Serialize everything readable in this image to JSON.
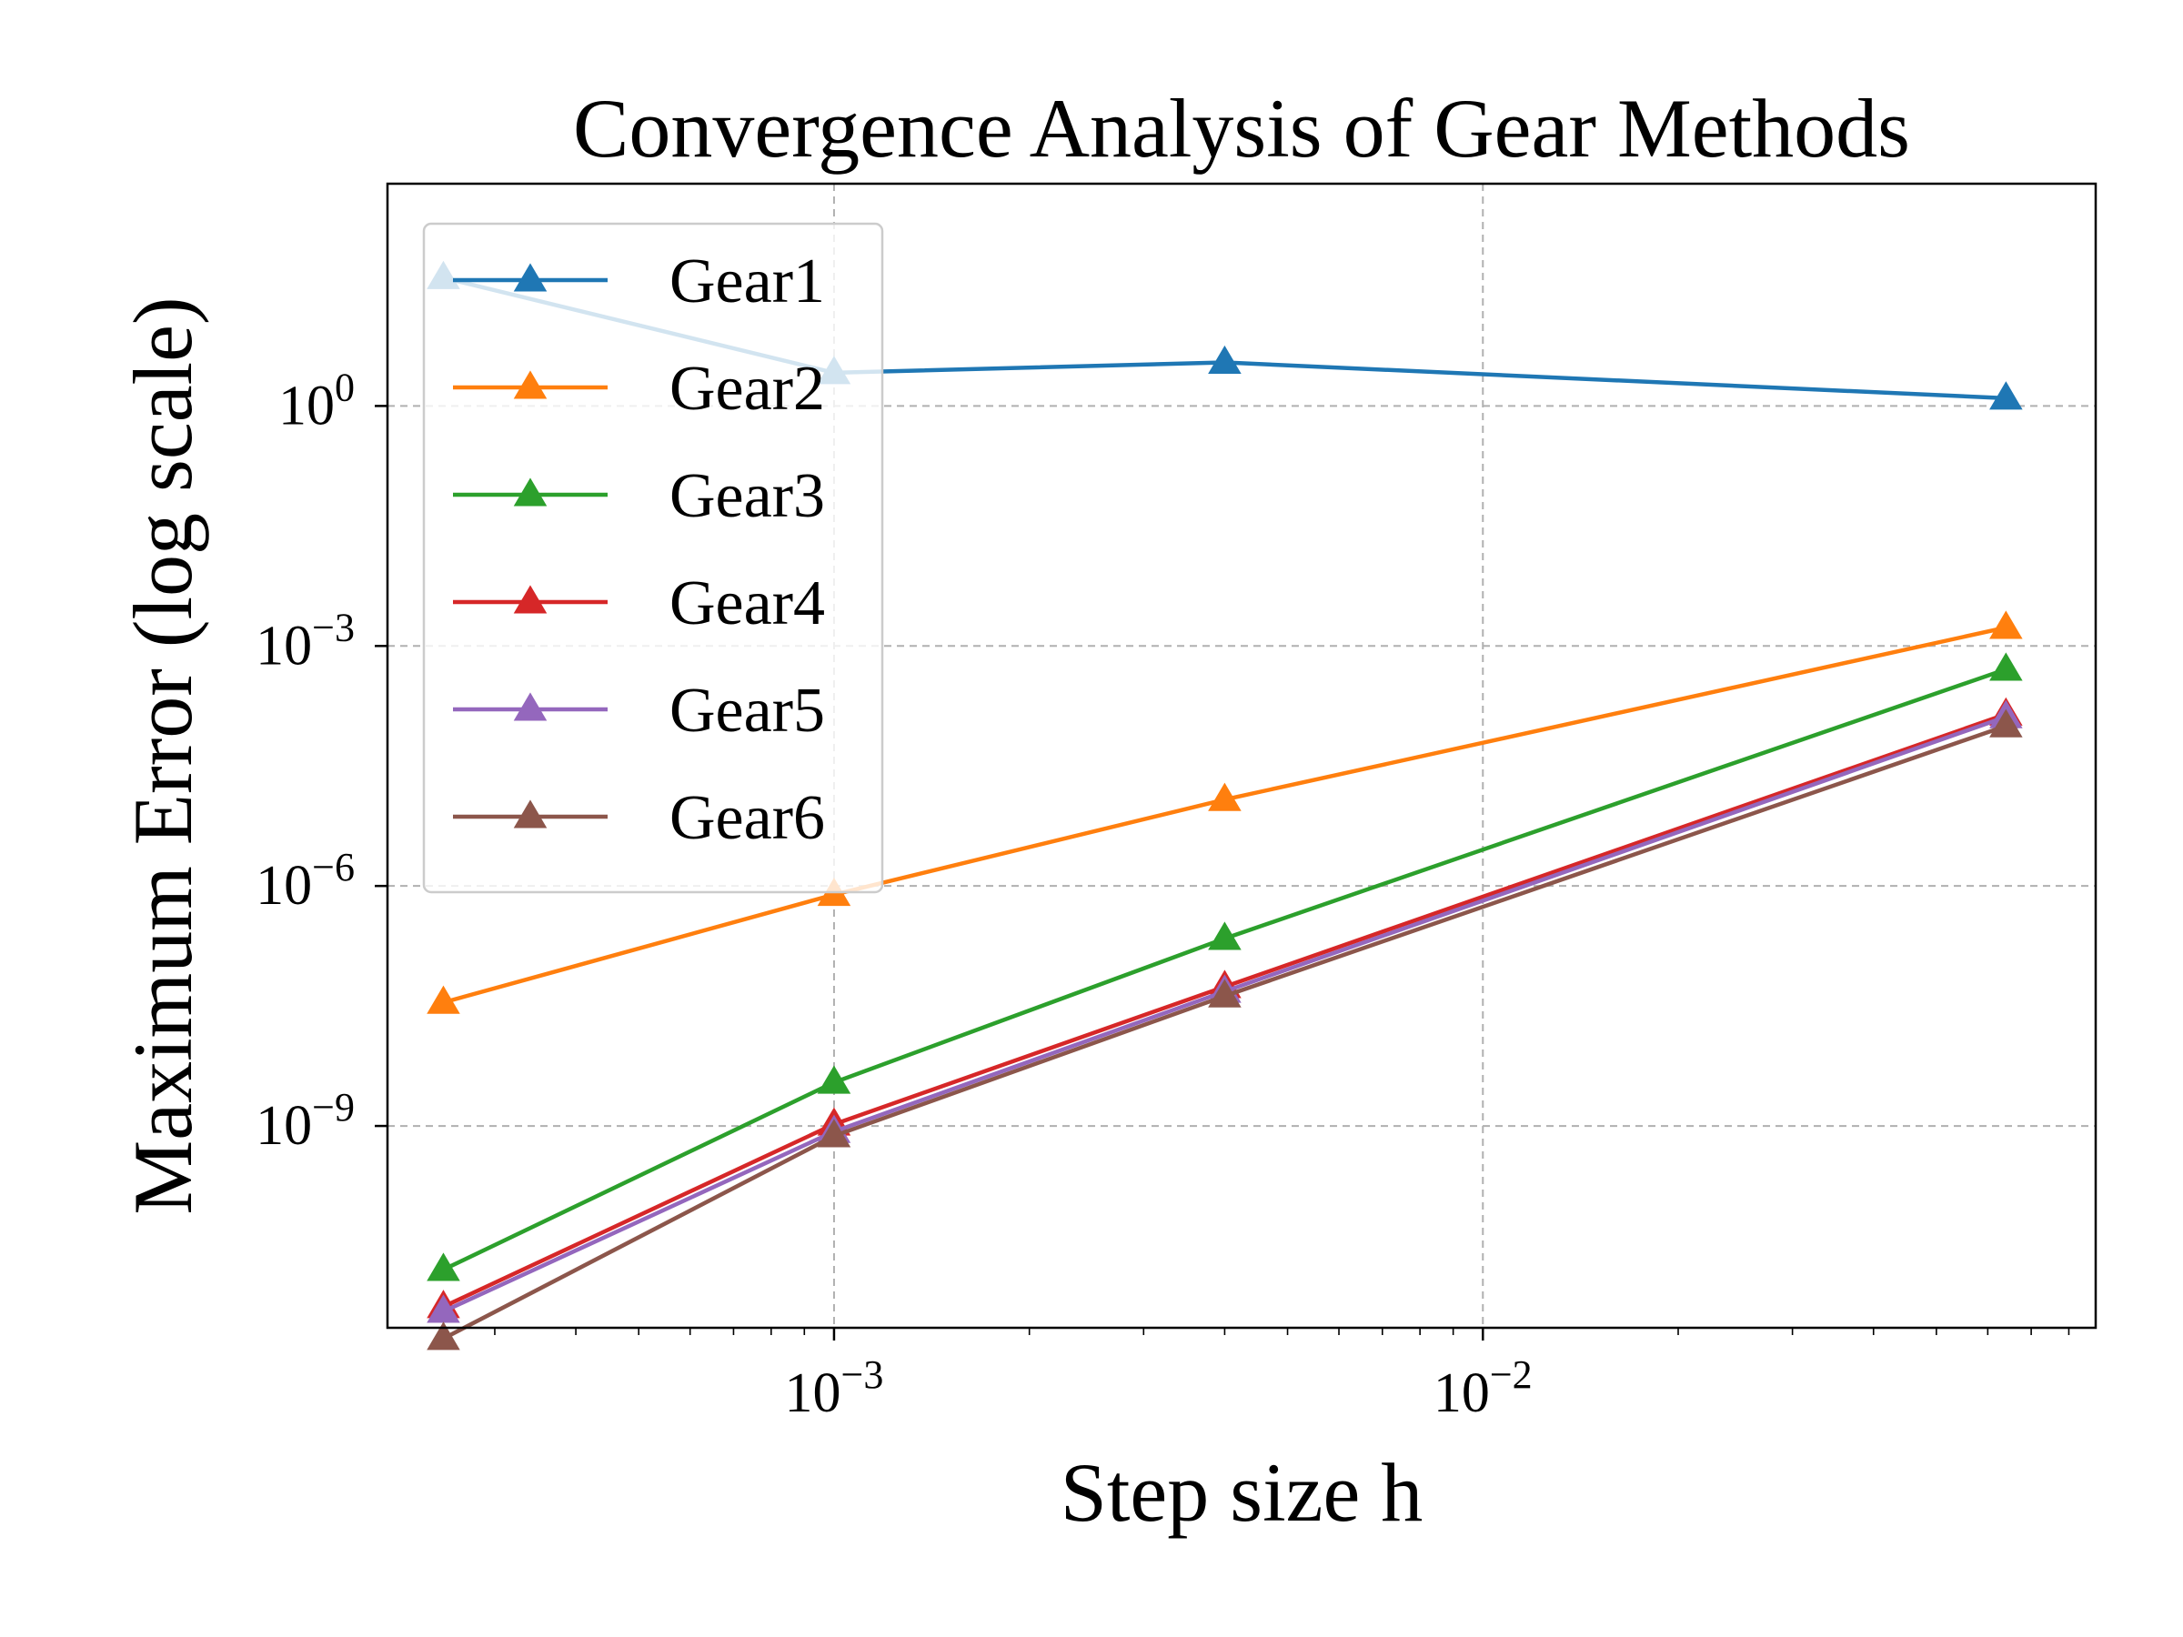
{
  "chart_data": {
    "type": "line",
    "title": "Convergence Analysis of Gear Methods",
    "xlabel": "Step size h",
    "ylabel": "Maximum Error (log scale)",
    "xscale": "log",
    "yscale": "log",
    "xlim": [
      0.000205,
      0.088
    ],
    "ylim": [
      3e-12,
      600
    ],
    "x_ticks": [
      {
        "value": 0.001,
        "base": "10",
        "exp": "−3"
      },
      {
        "value": 0.01,
        "base": "10",
        "exp": "−2"
      }
    ],
    "y_ticks": [
      {
        "value": 1,
        "base": "10",
        "exp": "0"
      },
      {
        "value": 0.001,
        "base": "10",
        "exp": "−3"
      },
      {
        "value": 1e-06,
        "base": "10",
        "exp": "−6"
      },
      {
        "value": 1e-09,
        "base": "10",
        "exp": "−9"
      }
    ],
    "grid": true,
    "legend_position": "upper left",
    "marker": "triangle-up",
    "x": [
      0.00025,
      0.001,
      0.004,
      0.064
    ],
    "series": [
      {
        "name": "Gear1",
        "color": "#1f77b4",
        "values": [
          40,
          2.6,
          3.5,
          1.25
        ]
      },
      {
        "name": "Gear2",
        "color": "#ff7f0e",
        "values": [
          3.5e-08,
          7.8e-07,
          1.2e-05,
          0.0017
        ]
      },
      {
        "name": "Gear3",
        "color": "#2ca02c",
        "values": [
          1.6e-11,
          3.5e-09,
          2.2e-07,
          0.00051
        ]
      },
      {
        "name": "Gear4",
        "color": "#d62728",
        "values": [
          5.5e-12,
          1.05e-09,
          5.5e-08,
          0.00014
        ]
      },
      {
        "name": "Gear5",
        "color": "#9467bd",
        "values": [
          4.8e-12,
          8.5e-10,
          4.8e-08,
          0.00013
        ]
      },
      {
        "name": "Gear6",
        "color": "#8c564b",
        "values": [
          2.2e-12,
          7.5e-10,
          4.2e-08,
          0.0001
        ]
      }
    ]
  }
}
